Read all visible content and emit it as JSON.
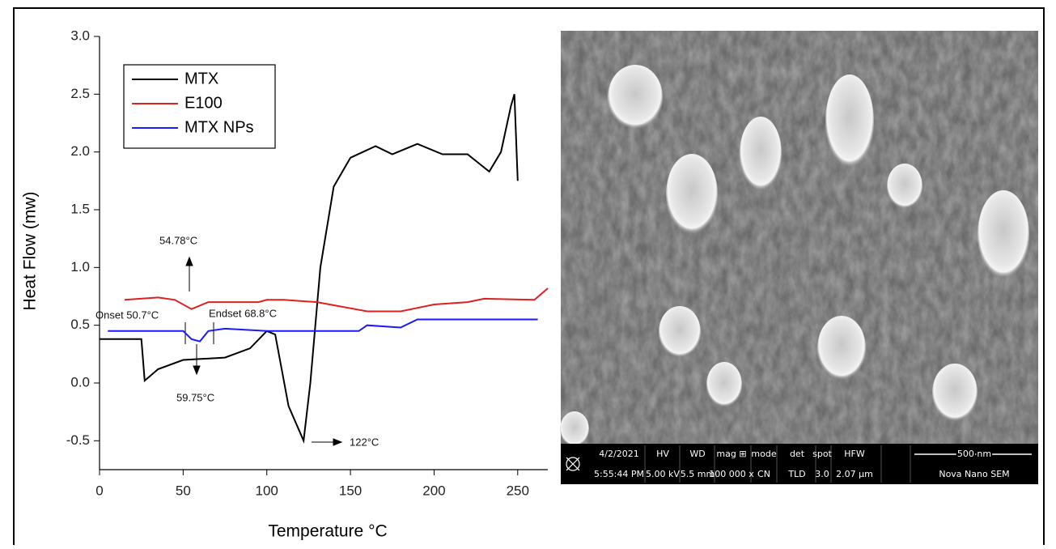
{
  "chart_data": {
    "type": "line",
    "x_label": "Temperature °C",
    "y_label": "Heat Flow (mw)",
    "xlim": [
      0,
      268
    ],
    "xticks": [
      0,
      50,
      100,
      150,
      200,
      250
    ],
    "ylim": [
      -0.75,
      3.0
    ],
    "yticks": [
      -0.5,
      {
        "value": 0,
        "label": "0.0"
      },
      0.5,
      {
        "value": 1,
        "label": "1.0"
      },
      1.5,
      {
        "value": 2,
        "label": "2.0"
      },
      2.5,
      {
        "value": 3,
        "label": "3.0"
      }
    ],
    "legend": "upper left",
    "series": [
      {
        "name": "MTX",
        "color": "#000000",
        "x": [
          0,
          25,
          27,
          35,
          50,
          75,
          90,
          100,
          105,
          113,
          122,
          126,
          132,
          140,
          150,
          165,
          175,
          190,
          205,
          220,
          233,
          240,
          246,
          248,
          250
        ],
        "values": [
          0.38,
          0.38,
          0.02,
          0.12,
          0.2,
          0.22,
          0.3,
          0.45,
          0.42,
          -0.2,
          -0.5,
          0.0,
          1.0,
          1.7,
          1.95,
          2.05,
          1.98,
          2.07,
          1.98,
          1.98,
          1.83,
          2.0,
          2.4,
          2.5,
          1.75
        ]
      },
      {
        "name": "E100",
        "color": "#e02020",
        "x": [
          15,
          35,
          45,
          55,
          65,
          95,
          100,
          110,
          130,
          160,
          180,
          200,
          220,
          230,
          260,
          268
        ],
        "values": [
          0.72,
          0.74,
          0.72,
          0.64,
          0.7,
          0.7,
          0.72,
          0.72,
          0.7,
          0.62,
          0.62,
          0.68,
          0.7,
          0.73,
          0.72,
          0.82
        ]
      },
      {
        "name": "MTX NPs",
        "color": "#1a1aff",
        "x": [
          5,
          50,
          55,
          60,
          65,
          75,
          100,
          155,
          160,
          180,
          190,
          262
        ],
        "values": [
          0.45,
          0.45,
          0.38,
          0.36,
          0.45,
          0.47,
          0.45,
          0.45,
          0.5,
          0.48,
          0.55,
          0.55
        ]
      }
    ],
    "annotations": [
      "54.78°C",
      "Onset 50.7°C",
      "Endset 68.8°C",
      "59.75°C",
      "122°C"
    ]
  },
  "sem_image": {
    "info_bar": [
      {
        "header": "4/2/2021",
        "value": "5:55:44 PM"
      },
      {
        "header": "HV",
        "value": "5.00 kV"
      },
      {
        "header": "WD",
        "value": "5.5 mm"
      },
      {
        "header": "mag ⊞",
        "value": "100 000 x"
      },
      {
        "header": "mode",
        "value": "CN"
      },
      {
        "header": "det",
        "value": "TLD"
      },
      {
        "header": "spot",
        "value": "3.0"
      },
      {
        "header": "HFW",
        "value": "2.07 µm"
      },
      {
        "header": "500 nm",
        "value": "Nova Nano SEM"
      }
    ]
  }
}
